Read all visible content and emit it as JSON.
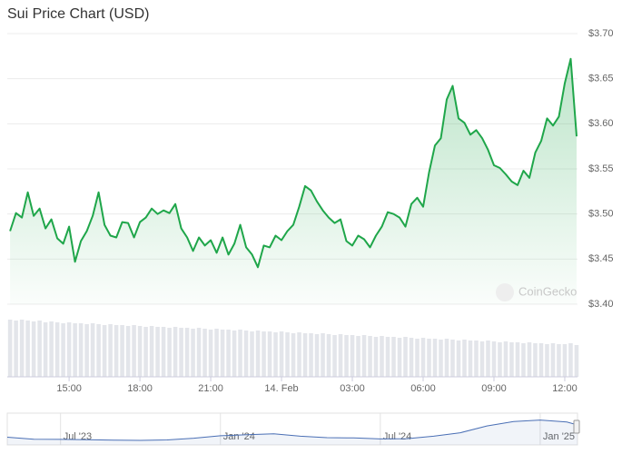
{
  "chart_data": {
    "type": "line",
    "title": "Sui Price Chart (USD)",
    "watermark": "CoinGecko",
    "color": "#1fa64a",
    "x": [
      12.5,
      12.75,
      13,
      13.25,
      13.5,
      13.75,
      14,
      14.25,
      14.5,
      14.75,
      15,
      15.25,
      15.5,
      15.75,
      16,
      16.25,
      16.5,
      16.75,
      17,
      17.25,
      17.5,
      17.75,
      18,
      18.25,
      18.5,
      18.75,
      19,
      19.25,
      19.5,
      19.75,
      20,
      20.25,
      20.5,
      20.75,
      21,
      21.25,
      21.5,
      21.75,
      22,
      22.25,
      22.5,
      22.75,
      23,
      23.25,
      23.5,
      23.75,
      24,
      24.25,
      24.5,
      24.75,
      25,
      25.25,
      25.5,
      25.75,
      26,
      26.25,
      26.5,
      26.75,
      27,
      27.25,
      27.5,
      27.75,
      28,
      28.25,
      28.5,
      28.75,
      29,
      29.25,
      29.5,
      29.75,
      30,
      30.25,
      30.5,
      30.75,
      31,
      31.25,
      31.5,
      31.75,
      32,
      32.25,
      32.5,
      32.75,
      33,
      33.25,
      33.5,
      33.75,
      34,
      34.25,
      34.5,
      34.75,
      35,
      35.25,
      35.5,
      35.75,
      36,
      36.25,
      36.5
    ],
    "values": [
      3.481,
      3.501,
      3.496,
      3.524,
      3.498,
      3.506,
      3.484,
      3.494,
      3.473,
      3.467,
      3.486,
      3.447,
      3.47,
      3.481,
      3.498,
      3.524,
      3.488,
      3.476,
      3.474,
      3.491,
      3.49,
      3.474,
      3.491,
      3.496,
      3.506,
      3.5,
      3.504,
      3.501,
      3.511,
      3.484,
      3.474,
      3.459,
      3.474,
      3.465,
      3.471,
      3.457,
      3.474,
      3.455,
      3.467,
      3.488,
      3.463,
      3.455,
      3.441,
      3.465,
      3.463,
      3.476,
      3.471,
      3.481,
      3.488,
      3.508,
      3.531,
      3.526,
      3.514,
      3.504,
      3.496,
      3.49,
      3.494,
      3.47,
      3.465,
      3.476,
      3.472,
      3.463,
      3.476,
      3.486,
      3.502,
      3.5,
      3.496,
      3.486,
      3.511,
      3.518,
      3.508,
      3.546,
      3.576,
      3.584,
      3.627,
      3.642,
      3.606,
      3.601,
      3.588,
      3.593,
      3.584,
      3.571,
      3.554,
      3.551,
      3.544,
      3.536,
      3.532,
      3.548,
      3.54,
      3.568,
      3.581,
      3.606,
      3.598,
      3.608,
      3.645,
      3.672,
      3.586
    ],
    "volume": [
      63,
      62,
      63,
      62,
      61,
      62,
      60,
      61,
      60,
      59,
      60,
      59,
      59,
      58,
      59,
      58,
      57,
      58,
      57,
      57,
      56,
      57,
      56,
      55,
      56,
      55,
      55,
      54,
      55,
      54,
      54,
      53,
      54,
      53,
      52,
      53,
      52,
      52,
      51,
      52,
      51,
      50,
      51,
      50,
      50,
      49,
      50,
      49,
      48,
      49,
      48,
      48,
      47,
      48,
      47,
      46,
      47,
      46,
      46,
      45,
      46,
      45,
      44,
      45,
      44,
      44,
      43,
      44,
      43,
      42,
      43,
      42,
      42,
      41,
      42,
      41,
      40,
      41,
      40,
      40,
      39,
      40,
      39,
      38,
      39,
      38,
      38,
      37,
      38,
      37,
      37,
      36,
      37,
      36,
      36,
      37,
      35
    ],
    "xlim": [
      12.38,
      36.54
    ],
    "xticks": [
      {
        "value": 15,
        "label": "15:00"
      },
      {
        "value": 18,
        "label": "18:00"
      },
      {
        "value": 21,
        "label": "21:00"
      },
      {
        "value": 24,
        "label": "14. Feb"
      },
      {
        "value": 27,
        "label": "03:00"
      },
      {
        "value": 30,
        "label": "06:00"
      },
      {
        "value": 33,
        "label": "09:00"
      },
      {
        "value": 36,
        "label": "12:00"
      }
    ],
    "ylim": [
      3.4,
      3.7
    ],
    "yticks": [
      {
        "value": 3.4,
        "label": "$3.40"
      },
      {
        "value": 3.45,
        "label": "$3.45"
      },
      {
        "value": 3.5,
        "label": "$3.50"
      },
      {
        "value": 3.55,
        "label": "$3.55"
      },
      {
        "value": 3.6,
        "label": "$3.60"
      },
      {
        "value": 3.65,
        "label": "$3.65"
      },
      {
        "value": 3.7,
        "label": "$3.70"
      }
    ],
    "grid": true,
    "navigator": {
      "color": "#4a6fb5",
      "x": [
        0,
        1,
        2,
        3,
        4,
        5,
        6,
        7,
        8,
        9,
        10,
        11,
        12,
        13,
        14,
        15,
        16,
        17,
        18,
        19,
        20,
        21,
        21.4
      ],
      "values": [
        1.1,
        0.7,
        0.65,
        0.6,
        0.5,
        0.45,
        0.55,
        0.9,
        1.4,
        1.6,
        1.8,
        1.3,
        1.0,
        0.95,
        0.75,
        0.8,
        1.3,
        2.0,
        3.4,
        4.3,
        4.6,
        4.2,
        3.6
      ],
      "xlim": [
        0,
        21.4
      ],
      "xticks": [
        {
          "value": 2,
          "label": "Jul '23"
        },
        {
          "value": 8,
          "label": "Jan '24"
        },
        {
          "value": 14,
          "label": "Jul '24"
        },
        {
          "value": 20,
          "label": "Jan '25"
        }
      ]
    }
  }
}
